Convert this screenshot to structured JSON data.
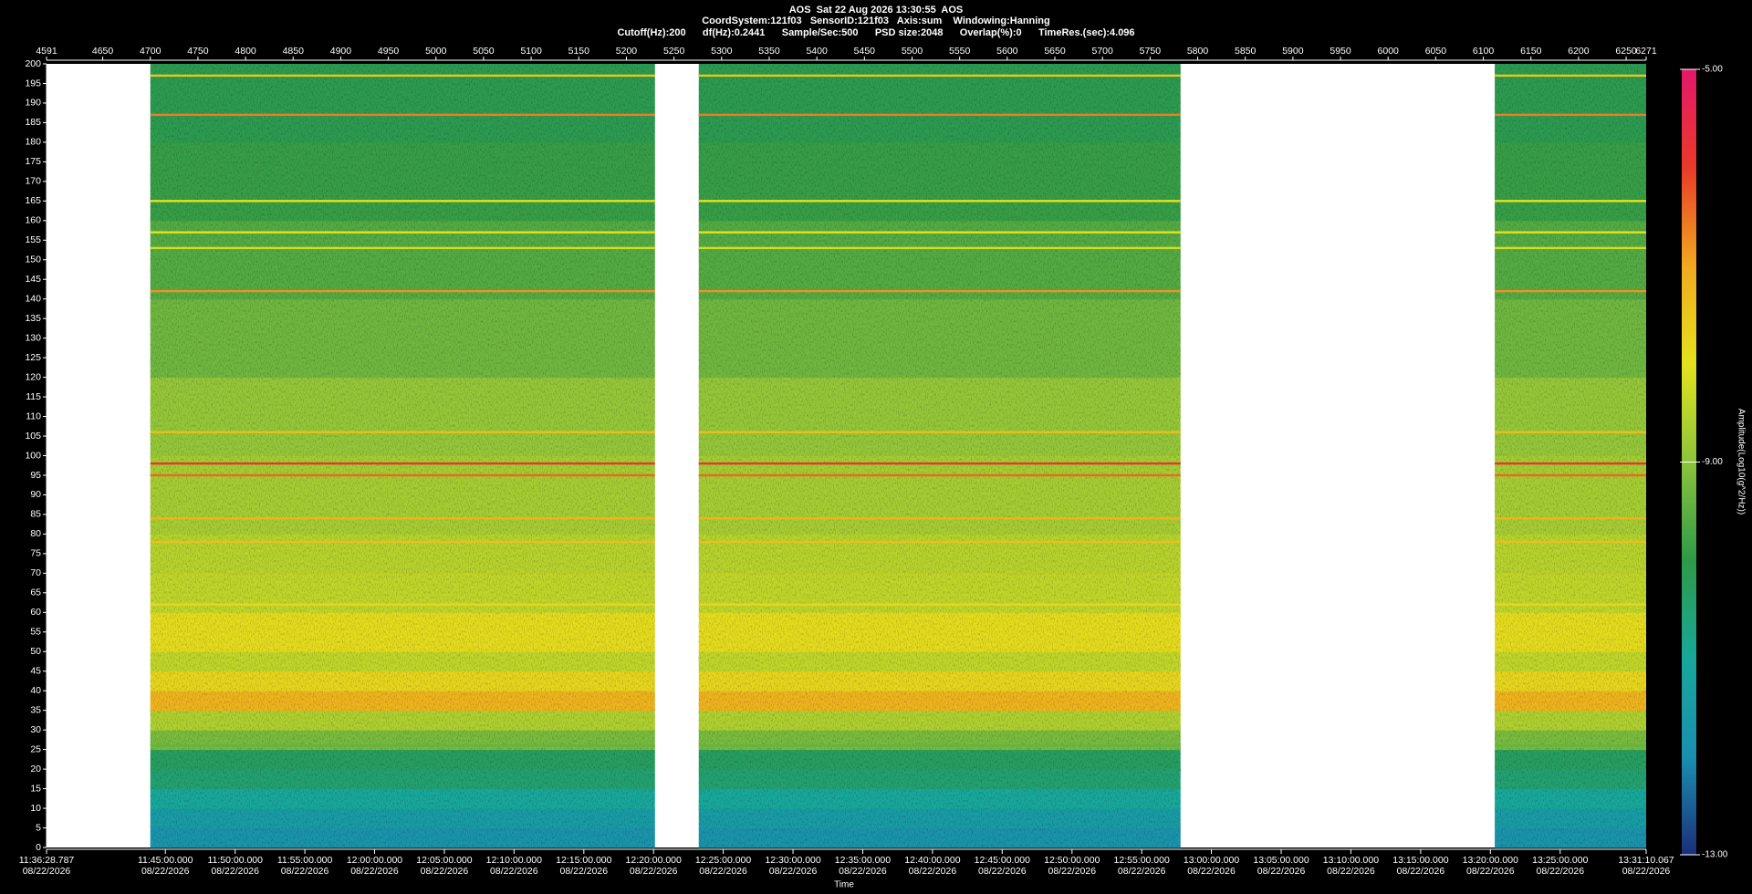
{
  "chart_data": {
    "type": "spectrogram",
    "header": [
      "AOS  Sat 22 Aug 2026 13:30:55  AOS",
      "CoordSystem:121f03   SensorID:121f03   Axis:sum    Windowing:Hanning",
      "Cutoff(Hz):200      df(Hz):0.2441      Sample/Sec:500      PSD size:2048      Overlap(%):0      TimeRes.(sec):4.096"
    ],
    "xlabel": "Time",
    "colorbar_label": "Amplitude(Log10(g^2/Hz))",
    "xlim": [
      4591,
      6271
    ],
    "xticks": [
      4591,
      4650,
      4700,
      4750,
      4800,
      4850,
      4900,
      4950,
      5000,
      5050,
      5100,
      5150,
      5200,
      5250,
      5300,
      5350,
      5400,
      5450,
      5500,
      5550,
      5600,
      5650,
      5700,
      5750,
      5800,
      5850,
      5900,
      5950,
      6000,
      6050,
      6100,
      6150,
      6200,
      6250,
      6271
    ],
    "time_ticks": [
      {
        "value": 4591,
        "label": "11:36:28.787",
        "date": "08/22/2026"
      },
      {
        "value": 4715.8,
        "label": "11:45:00.000",
        "date": "08/22/2026"
      },
      {
        "value": 4789.1,
        "label": "11:50:00.000",
        "date": "08/22/2026"
      },
      {
        "value": 4862.3,
        "label": "11:55:00.000",
        "date": "08/22/2026"
      },
      {
        "value": 4935.5,
        "label": "12:00:00.000",
        "date": "08/22/2026"
      },
      {
        "value": 5008.8,
        "label": "12:05:00.000",
        "date": "08/22/2026"
      },
      {
        "value": 5082,
        "label": "12:10:00.000",
        "date": "08/22/2026"
      },
      {
        "value": 5155.3,
        "label": "12:15:00.000",
        "date": "08/22/2026"
      },
      {
        "value": 5228.5,
        "label": "12:20:00.000",
        "date": "08/22/2026"
      },
      {
        "value": 5301.7,
        "label": "12:25:00.000",
        "date": "08/22/2026"
      },
      {
        "value": 5375,
        "label": "12:30:00.000",
        "date": "08/22/2026"
      },
      {
        "value": 5448.2,
        "label": "12:35:00.000",
        "date": "08/22/2026"
      },
      {
        "value": 5521.5,
        "label": "12:40:00.000",
        "date": "08/22/2026"
      },
      {
        "value": 5594.7,
        "label": "12:45:00.000",
        "date": "08/22/2026"
      },
      {
        "value": 5668,
        "label": "12:50:00.000",
        "date": "08/22/2026"
      },
      {
        "value": 5741.2,
        "label": "12:55:00.000",
        "date": "08/22/2026"
      },
      {
        "value": 5814.4,
        "label": "13:00:00.000",
        "date": "08/22/2026"
      },
      {
        "value": 5887.7,
        "label": "13:05:00.000",
        "date": "08/22/2026"
      },
      {
        "value": 5960.9,
        "label": "13:10:00.000",
        "date": "08/22/2026"
      },
      {
        "value": 6034.2,
        "label": "13:15:00.000",
        "date": "08/22/2026"
      },
      {
        "value": 6107.4,
        "label": "13:20:00.000",
        "date": "08/22/2026"
      },
      {
        "value": 6180.7,
        "label": "13:25:00.000",
        "date": "08/22/2026"
      },
      {
        "value": 6271,
        "label": "13:31:10.067",
        "date": "08/22/2026"
      }
    ],
    "ylim": [
      0,
      200
    ],
    "yticks": [
      0,
      5,
      10,
      15,
      20,
      25,
      30,
      35,
      40,
      45,
      50,
      55,
      60,
      65,
      70,
      75,
      80,
      85,
      90,
      95,
      100,
      105,
      110,
      115,
      120,
      125,
      130,
      135,
      140,
      145,
      150,
      155,
      160,
      165,
      170,
      175,
      180,
      185,
      190,
      195,
      200
    ],
    "zlim": [
      -13,
      -5
    ],
    "zticks": [
      {
        "value": -5,
        "label": "-5.00"
      },
      {
        "value": -9,
        "label": "-9.00"
      },
      {
        "value": -13,
        "label": "-13.00"
      }
    ],
    "colormap": [
      "#1b2f7a",
      "#1a8fb0",
      "#18a89a",
      "#2e9a48",
      "#8cc43c",
      "#e4e21e",
      "#f2a81e",
      "#ea3a28",
      "#e3186c"
    ],
    "segments": [
      [
        4700,
        5230
      ],
      [
        5276,
        5782
      ],
      [
        6112,
        6271
      ]
    ],
    "freq_bins": [
      0,
      5,
      10,
      15,
      20,
      25,
      30,
      35,
      40,
      45,
      50,
      60,
      70,
      80,
      100,
      120,
      140,
      160,
      180,
      200
    ],
    "amplitude": [
      -11.8,
      -11.5,
      -11,
      -10.5,
      -10.3,
      -9.2,
      -8.6,
      -7.2,
      -7.8,
      -8.4,
      -7.9,
      -8.4,
      -8.5,
      -8.7,
      -8.9,
      -9.3,
      -9.6,
      -9.9,
      -10.1
    ],
    "tones": {
      "freq": [
        197,
        187,
        165,
        157,
        153,
        142,
        106,
        98,
        95,
        84,
        78,
        62,
        26
      ],
      "amplitude": [
        -7.5,
        -6.6,
        -8,
        -8,
        -8.2,
        -6.8,
        -7.4,
        -5.8,
        -6.4,
        -7.2,
        -7.4,
        -7.8,
        -9.4
      ]
    }
  }
}
